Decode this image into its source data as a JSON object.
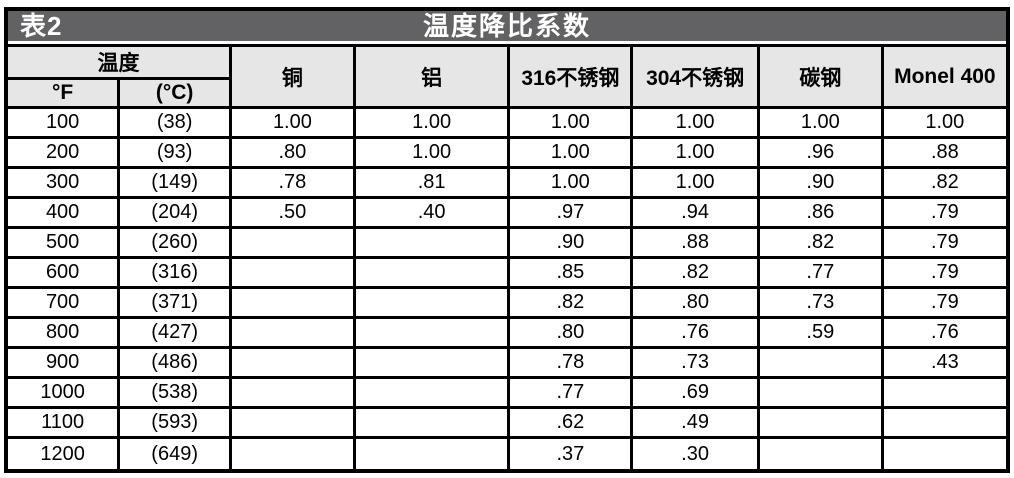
{
  "table": {
    "tag": "表2",
    "title": "温度降比系数",
    "columns": {
      "temp_group": "温度",
      "temp_sub": [
        "°F",
        "(°C)"
      ],
      "materials": [
        "铜",
        "铝",
        "316不锈钢",
        "304不锈钢",
        "碳钢",
        "Monel 400"
      ]
    },
    "rows": [
      {
        "f": "100",
        "c": "(38)",
        "values": [
          "1.00",
          "1.00",
          "1.00",
          "1.00",
          "1.00",
          "1.00"
        ]
      },
      {
        "f": "200",
        "c": "(93)",
        "values": [
          ".80",
          "1.00",
          "1.00",
          "1.00",
          ".96",
          ".88"
        ]
      },
      {
        "f": "300",
        "c": "(149)",
        "values": [
          ".78",
          ".81",
          "1.00",
          "1.00",
          ".90",
          ".82"
        ]
      },
      {
        "f": "400",
        "c": "(204)",
        "values": [
          ".50",
          ".40",
          ".97",
          ".94",
          ".86",
          ".79"
        ]
      },
      {
        "f": "500",
        "c": "(260)",
        "values": [
          "",
          "",
          ".90",
          ".88",
          ".82",
          ".79"
        ]
      },
      {
        "f": "600",
        "c": "(316)",
        "values": [
          "",
          "",
          ".85",
          ".82",
          ".77",
          ".79"
        ]
      },
      {
        "f": "700",
        "c": "(371)",
        "values": [
          "",
          "",
          ".82",
          ".80",
          ".73",
          ".79"
        ]
      },
      {
        "f": "800",
        "c": "(427)",
        "values": [
          "",
          "",
          ".80",
          ".76",
          ".59",
          ".76"
        ]
      },
      {
        "f": "900",
        "c": "(486)",
        "values": [
          "",
          "",
          ".78",
          ".73",
          "",
          ".43"
        ]
      },
      {
        "f": "1000",
        "c": "(538)",
        "values": [
          "",
          "",
          ".77",
          ".69",
          "",
          ""
        ]
      },
      {
        "f": "1100",
        "c": "(593)",
        "values": [
          "",
          "",
          ".62",
          ".49",
          "",
          ""
        ]
      },
      {
        "f": "1200",
        "c": "(649)",
        "values": [
          "",
          "",
          ".37",
          ".30",
          "",
          ""
        ]
      }
    ]
  },
  "colors": {
    "title_bar_bg": "#626264",
    "title_text": "#ffffff",
    "header_bg": "#e6e6e6",
    "border": "#000000",
    "data_text": "#000000"
  }
}
